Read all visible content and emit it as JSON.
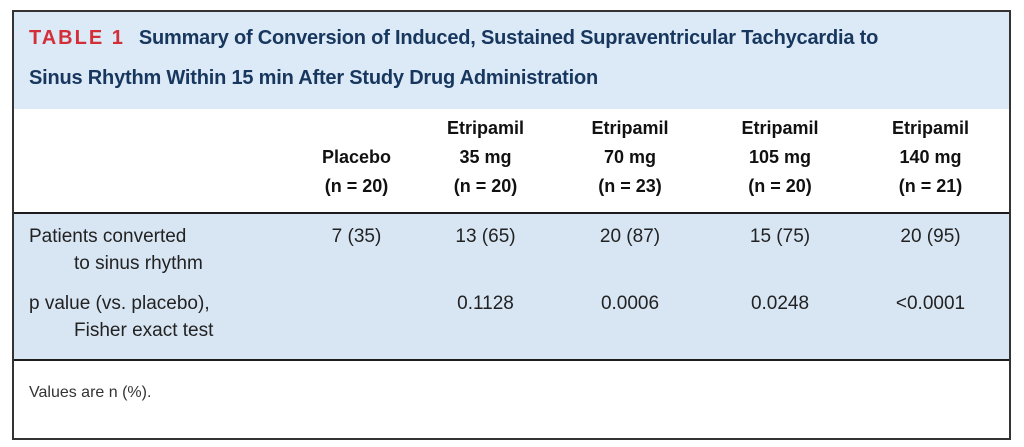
{
  "colors": {
    "table_label_red": "#D22F38",
    "title_navy": "#17375E",
    "title_band_blue": "#DCE9F6",
    "body_band_blue": "#D8E6F4",
    "rule_black": "#1C1C1C",
    "frame_border": "#333333"
  },
  "table": {
    "label": "TABLE 1",
    "title_line1": "Summary of Conversion of Induced, Sustained Supraventricular Tachycardia to",
    "title_line2": "Sinus Rhythm Within 15 min After Study Drug Administration",
    "columns": [
      {
        "lines": [
          "Placebo",
          "(n = 20)"
        ]
      },
      {
        "lines": [
          "Etripamil",
          "35 mg",
          "(n = 20)"
        ]
      },
      {
        "lines": [
          "Etripamil",
          "70 mg",
          "(n = 23)"
        ]
      },
      {
        "lines": [
          "Etripamil",
          "105 mg",
          "(n = 20)"
        ]
      },
      {
        "lines": [
          "Etripamil",
          "140 mg",
          "(n = 21)"
        ]
      }
    ],
    "rows": [
      {
        "label_lines": [
          "Patients converted",
          "to sinus rhythm"
        ],
        "values": [
          "7 (35)",
          "13 (65)",
          "20 (87)",
          "15 (75)",
          "20 (95)"
        ]
      },
      {
        "label_lines": [
          "p value (vs. placebo),",
          "Fisher exact test"
        ],
        "values": [
          "",
          "0.1128",
          "0.0006",
          "0.0248",
          "<0.0001"
        ]
      }
    ],
    "footnote": "Values are n (%)."
  }
}
